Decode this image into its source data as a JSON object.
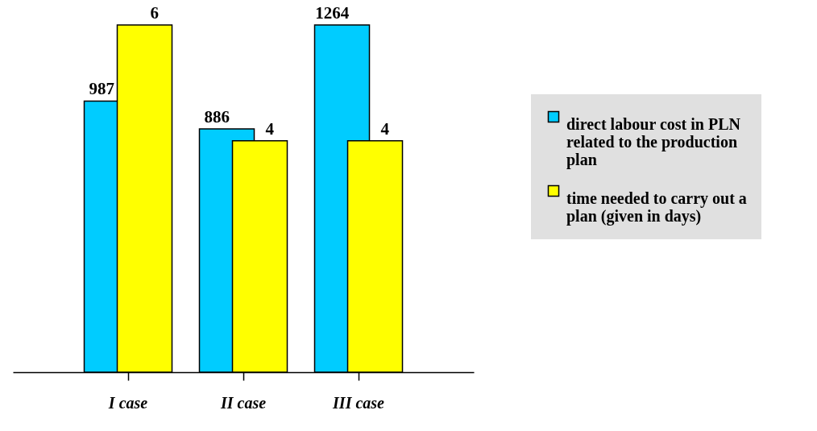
{
  "chart_data": {
    "type": "bar",
    "categories": [
      "I case",
      "II case",
      "III case"
    ],
    "series": [
      {
        "name": "direct labour cost in PLN related to the production plan",
        "color": "#00ccff",
        "values": [
          987,
          886,
          1264
        ]
      },
      {
        "name": "time needed to carry out a plan (given in days)",
        "color": "#ffff00",
        "values": [
          6,
          4,
          4
        ],
        "axis": "y2"
      }
    ],
    "tick_labels": "x",
    "data_labels": true,
    "grid": false,
    "legend": "right"
  }
}
